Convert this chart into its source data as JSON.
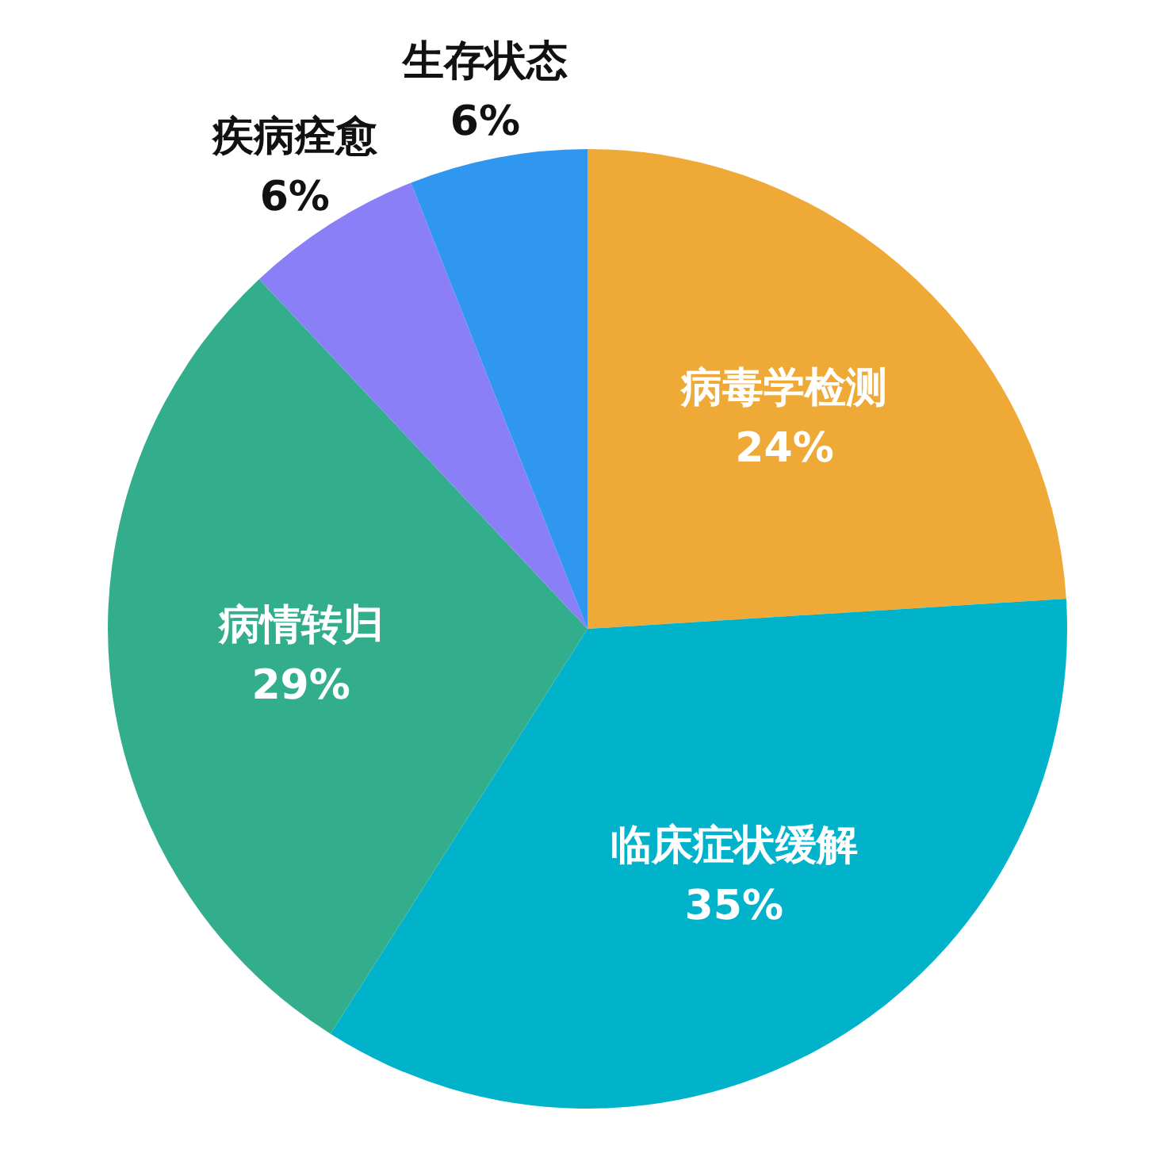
{
  "chart_data": {
    "type": "pie",
    "categories": [
      "病毒学检测",
      "临床症状缓解",
      "病情转归",
      "疾病痊愈",
      "生存状态"
    ],
    "values": [
      24,
      35,
      29,
      6,
      6
    ],
    "colors": [
      "#efa936",
      "#00b2ca",
      "#33ae8c",
      "#8a7ff6",
      "#2f97ef"
    ],
    "value_labels": [
      "24%",
      "35%",
      "29%",
      "6%",
      "6%"
    ],
    "legend": false
  }
}
